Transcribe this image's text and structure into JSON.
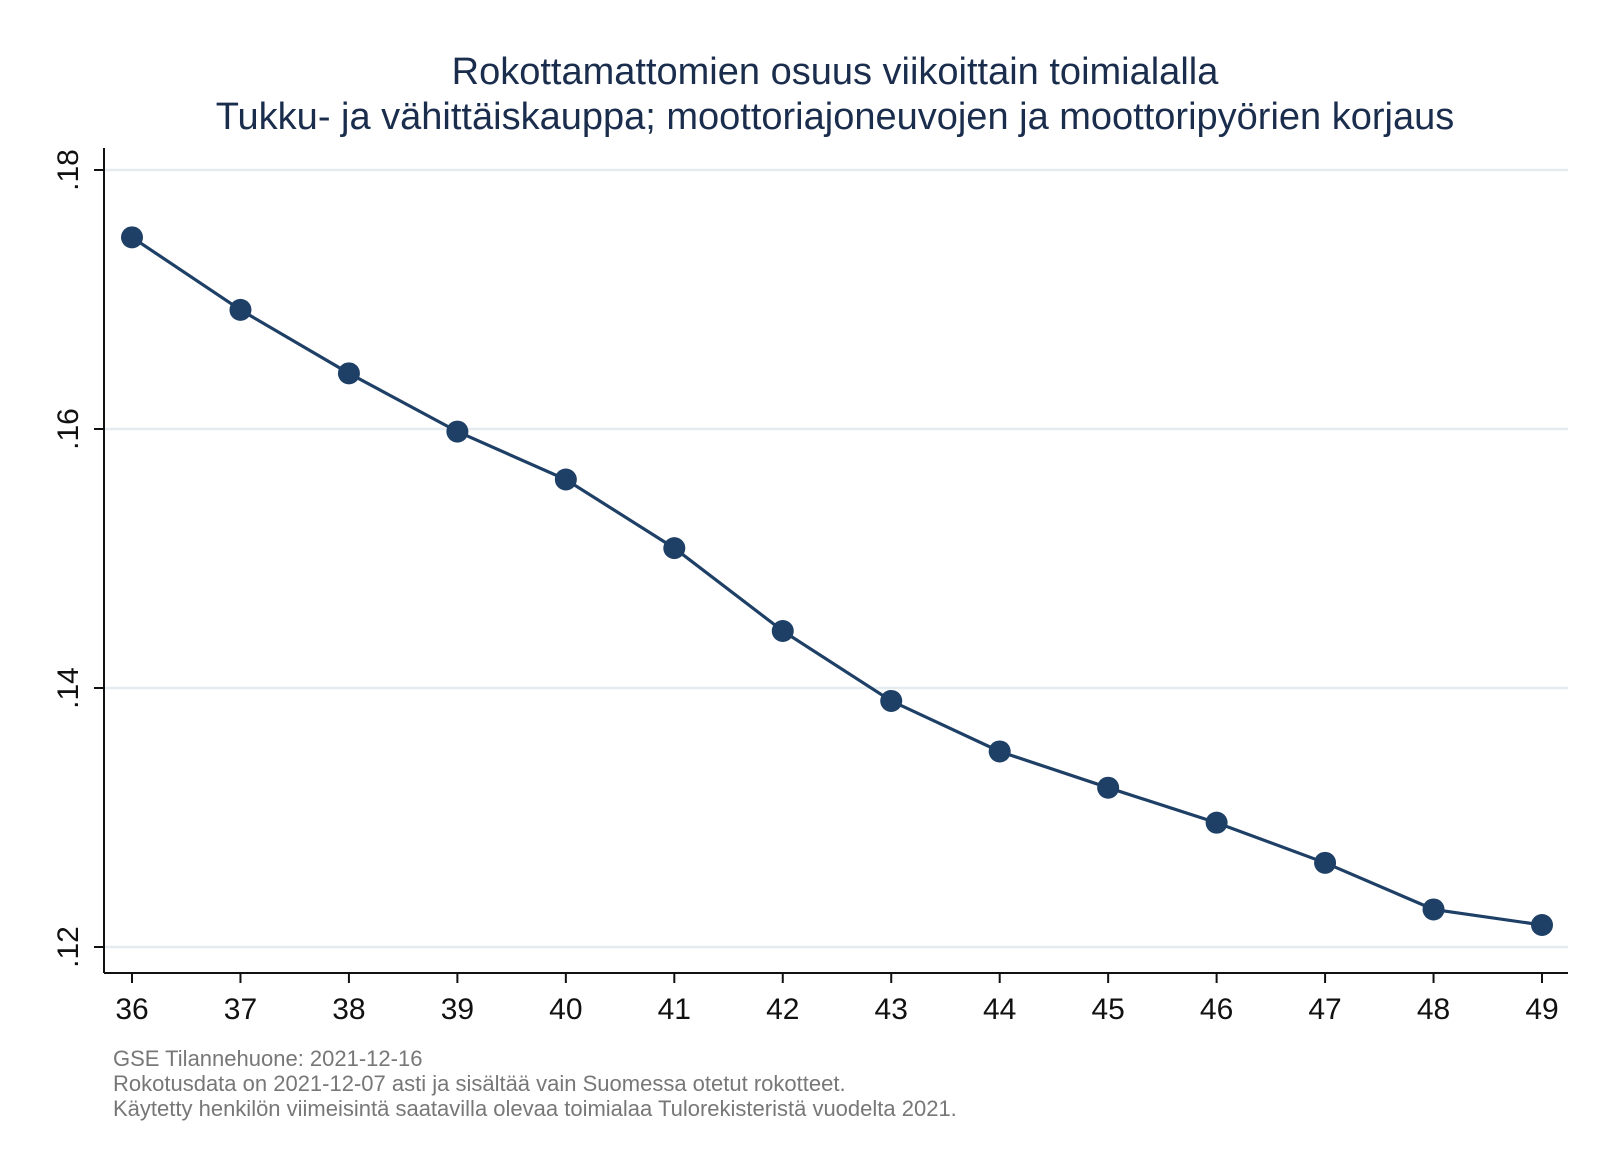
{
  "chart_data": {
    "type": "line",
    "title": "Rokottamattomien osuus viikoittain toimialalla",
    "subtitle": "Tukku- ja vähittäiskauppa; moottoriajoneuvojen ja moottoripyörien korjaus",
    "xlabel": "",
    "ylabel": "",
    "x": [
      36,
      37,
      38,
      39,
      40,
      41,
      42,
      43,
      44,
      45,
      46,
      47,
      48,
      49
    ],
    "series": [
      {
        "values": [
          0.1748,
          0.1692,
          0.1643,
          0.1598,
          0.1561,
          0.1508,
          0.1444,
          0.139,
          0.1351,
          0.1323,
          0.1296,
          0.1265,
          0.1229,
          0.1217
        ]
      }
    ],
    "ylim": [
      0.12,
      0.18
    ],
    "yticks": [
      0.12,
      0.14,
      0.16,
      0.18
    ],
    "ytick_labels": [
      ".12",
      ".14",
      ".16",
      ".18"
    ],
    "xticks": [
      36,
      37,
      38,
      39,
      40,
      41,
      42,
      43,
      44,
      45,
      46,
      47,
      48,
      49
    ],
    "xtick_labels": [
      "36",
      "37",
      "38",
      "39",
      "40",
      "41",
      "42",
      "43",
      "44",
      "45",
      "46",
      "47",
      "48",
      "49"
    ],
    "grid": true,
    "colors": {
      "series": "#1e3f66",
      "grid": "#e4ecef",
      "note": "#777777",
      "title": "#1a2d4d"
    }
  },
  "notes": [
    "GSE Tilannehuone: 2021-12-16",
    "Rokotusdata on 2021-12-07 asti ja sisältää vain Suomessa otetut rokotteet.",
    "Käytetty henkilön viimeisintä saatavilla olevaa toimialaa Tulorekisteristä vuodelta 2021."
  ]
}
